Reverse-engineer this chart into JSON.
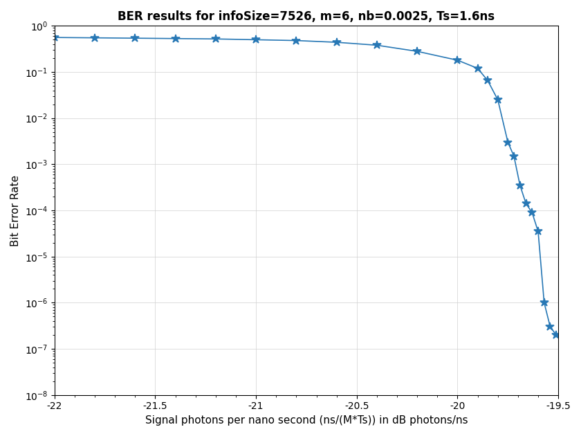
{
  "title": "BER results for infoSize=7526, m=6, nb=0.0025, Ts=1.6ns",
  "xlabel": "Signal photons per nano second (ns/(M*Ts)) in dB photons/ns",
  "ylabel": "Bit Error Rate",
  "xlim": [
    -22,
    -19.5
  ],
  "ylim_log": [
    -8,
    0
  ],
  "xticks": [
    -22,
    -21.5,
    -21,
    -20.5,
    -20,
    -19.5
  ],
  "line_color": "#2878b5",
  "x": [
    -22.0,
    -21.8,
    -21.6,
    -21.4,
    -21.2,
    -21.0,
    -20.8,
    -20.6,
    -20.4,
    -20.2,
    -20.0,
    -19.9,
    -19.85,
    -19.8,
    -19.75,
    -19.72,
    -19.69,
    -19.66,
    -19.63,
    -19.6,
    -19.57,
    -19.54,
    -19.51
  ],
  "y": [
    0.56,
    0.55,
    0.54,
    0.53,
    0.52,
    0.5,
    0.48,
    0.44,
    0.38,
    0.28,
    0.18,
    0.12,
    0.065,
    0.025,
    0.003,
    0.0015,
    0.00035,
    0.00014,
    9e-05,
    3.5e-05,
    1e-06,
    3e-07,
    2e-07
  ]
}
